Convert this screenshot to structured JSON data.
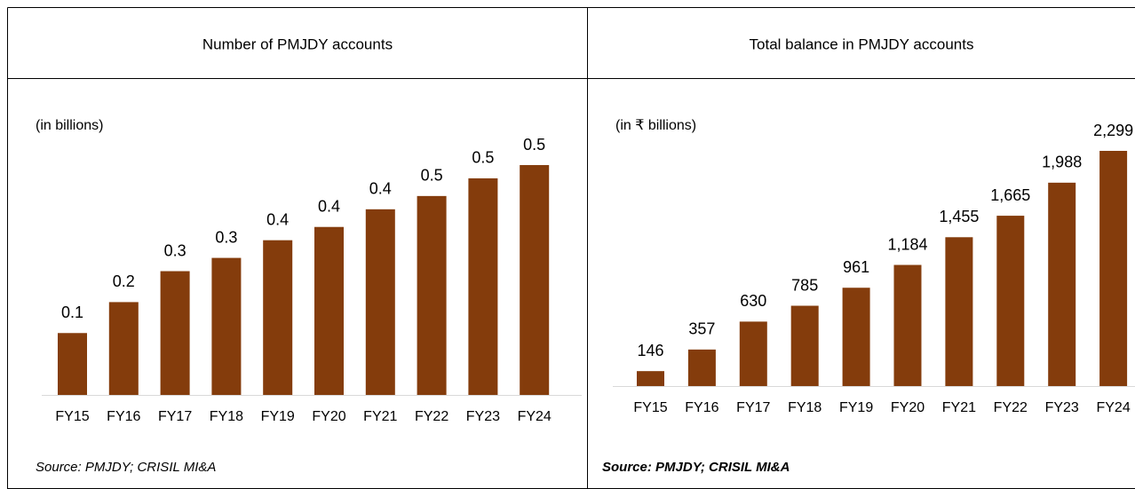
{
  "chart_data": [
    {
      "type": "bar",
      "title": "Number of PMJDY accounts",
      "note": "(in billions)",
      "categories": [
        "FY15",
        "FY16",
        "FY17",
        "FY18",
        "FY19",
        "FY20",
        "FY21",
        "FY22",
        "FY23",
        "FY24"
      ],
      "values": [
        0.14,
        0.21,
        0.28,
        0.31,
        0.35,
        0.38,
        0.42,
        0.45,
        0.49,
        0.52
      ],
      "value_labels": [
        "0.1",
        "0.2",
        "0.3",
        "0.3",
        "0.4",
        "0.4",
        "0.4",
        "0.5",
        "0.5",
        "0.5"
      ],
      "color": "#843c0c",
      "source": "Source: PMJDY; CRISIL MI&A"
    },
    {
      "type": "bar",
      "title": "Total balance in PMJDY accounts",
      "note": "(in ₹ billions)",
      "categories": [
        "FY15",
        "FY16",
        "FY17",
        "FY18",
        "FY19",
        "FY20",
        "FY21",
        "FY22",
        "FY23",
        "FY24"
      ],
      "values": [
        146,
        357,
        630,
        785,
        961,
        1184,
        1455,
        1665,
        1988,
        2299
      ],
      "value_labels": [
        "146",
        "357",
        "630",
        "785",
        "961",
        "1,184",
        "1,455",
        "1,665",
        "1,988",
        "2,299"
      ],
      "color": "#843c0c",
      "source": "Source: PMJDY; CRISIL MI&A"
    }
  ]
}
